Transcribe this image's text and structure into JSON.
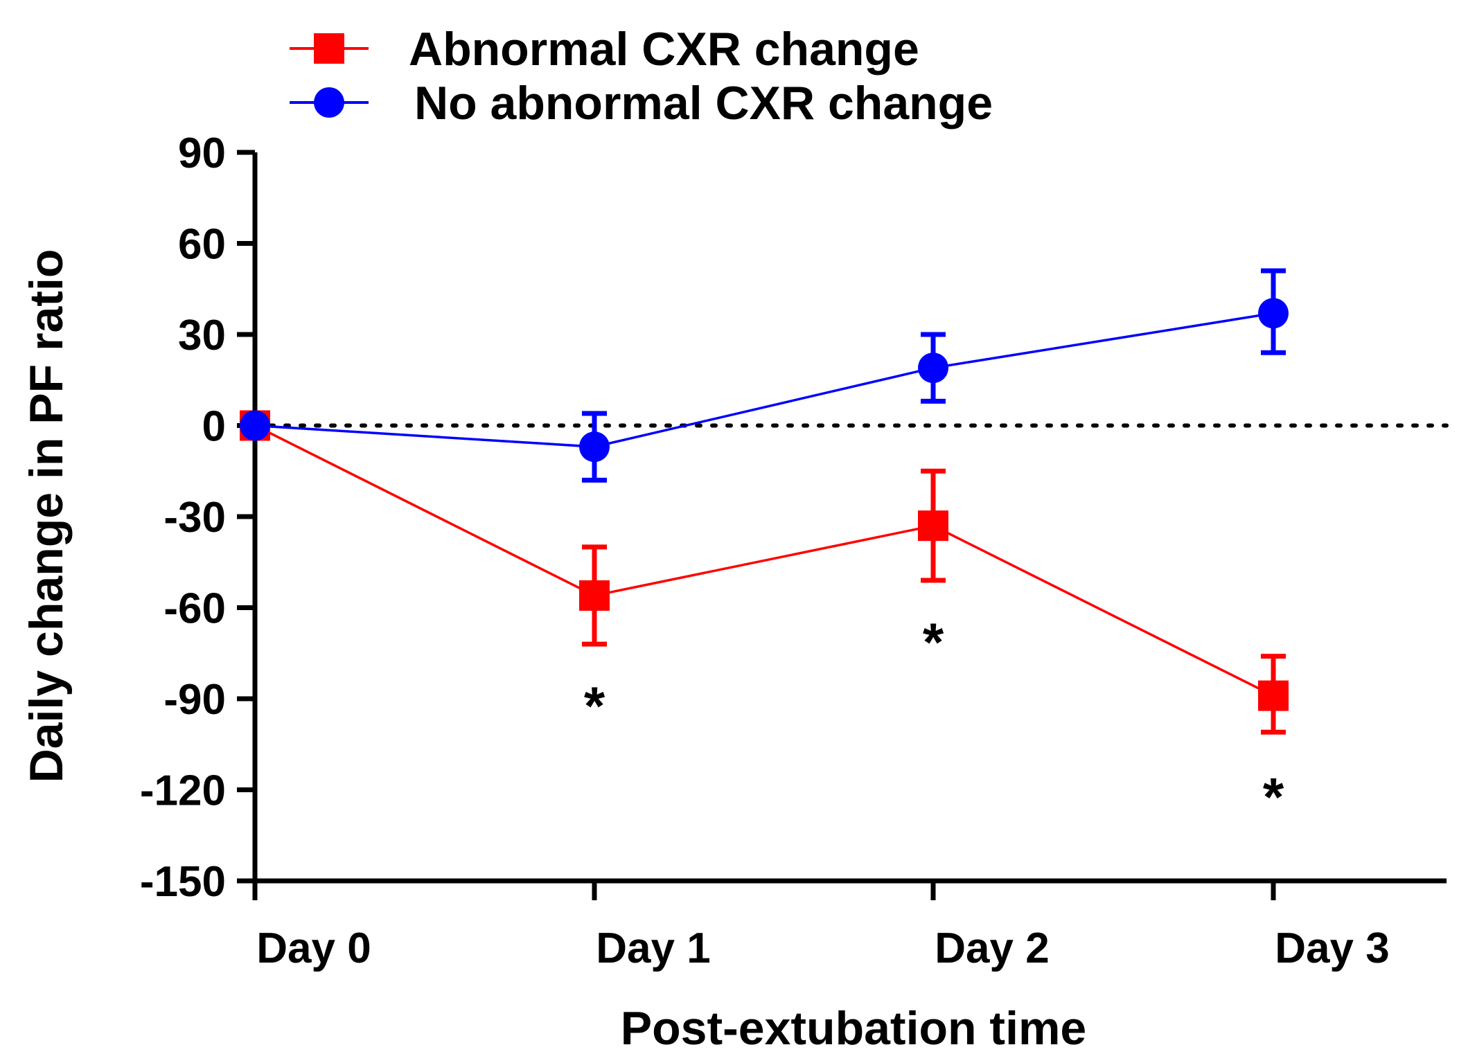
{
  "chart_data": {
    "type": "line",
    "xlabel": "Post-extubation time",
    "ylabel": "Daily change in PF ratio",
    "categories": [
      "Day 0",
      "Day 1",
      "Day 2",
      "Day 3"
    ],
    "ylim": [
      -150,
      90
    ],
    "yticks": [
      90,
      60,
      30,
      0,
      -30,
      -60,
      -90,
      -120,
      -150
    ],
    "reference_line": 0,
    "legend_position": "top-center",
    "series": [
      {
        "name": "Abnormal CXR change",
        "color": "#ff0000",
        "marker": "square",
        "values": [
          0,
          -56,
          -33,
          -89
        ],
        "error_low": [
          0,
          -72,
          -51,
          -101
        ],
        "error_high": [
          0,
          -40,
          -15,
          -76
        ]
      },
      {
        "name": "No abnormal CXR change",
        "color": "#0000ff",
        "marker": "circle",
        "values": [
          0,
          -7,
          19,
          37
        ],
        "error_low": [
          0,
          -18,
          8,
          24
        ],
        "error_high": [
          0,
          4,
          30,
          51
        ]
      }
    ],
    "annotations": [
      {
        "category": "Day 1",
        "y": -87,
        "text": "*"
      },
      {
        "category": "Day 2",
        "y": -66,
        "text": "*"
      },
      {
        "category": "Day 3",
        "y": -117,
        "text": "*"
      }
    ]
  }
}
